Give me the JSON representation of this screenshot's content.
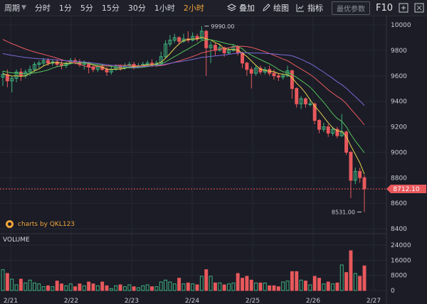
{
  "toolbar": {
    "period_label": "周期",
    "periods": [
      "分时",
      "1分",
      "5分",
      "15分",
      "30分",
      "1小时",
      "2小时"
    ],
    "active_period": "2小时",
    "overlay_label": "叠加",
    "draw_label": "绘图",
    "indicator_label": "指标",
    "params_label": "最优参数",
    "f10_label": "F10"
  },
  "watermark": "charts by QKL123",
  "volume_label": "VOLUME",
  "colors": {
    "up": "#3fb27f",
    "down": "#e8595c",
    "accent": "#f0a53a",
    "ma5": "#e8d44d",
    "ma10": "#54c35a",
    "ma20": "#ea5a5e",
    "ma30": "#7b6ad8"
  },
  "chart_data": {
    "type": "candlestick",
    "x_ticks": [
      "2/21",
      "2/22",
      "2/23",
      "2/24",
      "2/25",
      "2/26",
      "2/27"
    ],
    "price_ticks": [
      "10000",
      "9800",
      "9600",
      "9400",
      "9200",
      "9000",
      "8800",
      "8600",
      "8400"
    ],
    "price_range": [
      8400,
      10000
    ],
    "volume_ticks": [
      "24000",
      "16000",
      "8000",
      "0"
    ],
    "volume_range": [
      0,
      24000
    ],
    "last_price": "8712.10",
    "high_label": "9990.00",
    "low_label": "8531.00",
    "grid": true,
    "candles": [
      [
        9590,
        9610,
        9640,
        9520,
        11000
      ],
      [
        9610,
        9560,
        9650,
        9510,
        9000
      ],
      [
        9560,
        9580,
        9600,
        9470,
        6000
      ],
      [
        9580,
        9630,
        9650,
        9550,
        3000
      ],
      [
        9630,
        9600,
        9660,
        9560,
        6000
      ],
      [
        9600,
        9630,
        9650,
        9580,
        4000
      ],
      [
        9630,
        9650,
        9680,
        9600,
        5500
      ],
      [
        9650,
        9690,
        9710,
        9630,
        4000
      ],
      [
        9690,
        9700,
        9720,
        9660,
        3500
      ],
      [
        9700,
        9720,
        9740,
        9680,
        2000
      ],
      [
        9720,
        9700,
        9740,
        9680,
        2500
      ],
      [
        9700,
        9710,
        9730,
        9680,
        2000
      ],
      [
        9710,
        9690,
        9730,
        9670,
        5000
      ],
      [
        9690,
        9680,
        9720,
        9650,
        3500
      ],
      [
        9680,
        9700,
        9710,
        9660,
        2500
      ],
      [
        9700,
        9720,
        9740,
        9690,
        3500
      ],
      [
        9720,
        9710,
        9740,
        9690,
        2000
      ],
      [
        9710,
        9690,
        9730,
        9670,
        3500
      ],
      [
        9690,
        9700,
        9720,
        9650,
        2500
      ],
      [
        9700,
        9670,
        9710,
        9620,
        4500
      ],
      [
        9670,
        9650,
        9680,
        9630,
        3500
      ],
      [
        9650,
        9670,
        9690,
        9630,
        2500
      ],
      [
        9670,
        9650,
        9690,
        9640,
        4500
      ],
      [
        9650,
        9630,
        9670,
        9600,
        2500
      ],
      [
        9630,
        9650,
        9680,
        9610,
        1000
      ],
      [
        9650,
        9670,
        9690,
        9640,
        2500
      ],
      [
        9670,
        9660,
        9690,
        9640,
        3000
      ],
      [
        9660,
        9680,
        9700,
        9650,
        2000
      ],
      [
        9680,
        9690,
        9710,
        9660,
        3000
      ],
      [
        9690,
        9670,
        9710,
        9650,
        2000
      ],
      [
        9670,
        9680,
        9700,
        9660,
        1500
      ],
      [
        9680,
        9690,
        9710,
        9670,
        2500
      ],
      [
        9690,
        9700,
        9720,
        9680,
        3000
      ],
      [
        9700,
        9690,
        9730,
        9670,
        2000
      ],
      [
        9690,
        9700,
        9720,
        9670,
        2000
      ],
      [
        9700,
        9750,
        9790,
        9690,
        4500
      ],
      [
        9750,
        9850,
        9880,
        9740,
        5500
      ],
      [
        9850,
        9880,
        9920,
        9830,
        4500
      ],
      [
        9880,
        9900,
        9930,
        9860,
        3500
      ],
      [
        9900,
        9870,
        9910,
        9850,
        6500
      ],
      [
        9870,
        9890,
        9930,
        9860,
        3500
      ],
      [
        9890,
        9880,
        9950,
        9860,
        4000
      ],
      [
        9880,
        9910,
        9940,
        9870,
        3500
      ],
      [
        9910,
        9890,
        9930,
        9870,
        3000
      ],
      [
        9890,
        9950,
        9990,
        9880,
        7500
      ],
      [
        9950,
        9820,
        9960,
        9600,
        11000
      ],
      [
        9820,
        9840,
        9870,
        9700,
        7500
      ],
      [
        9840,
        9800,
        9860,
        9760,
        4000
      ],
      [
        9800,
        9820,
        9850,
        9790,
        4000
      ],
      [
        9820,
        9780,
        9830,
        9750,
        3000
      ],
      [
        9780,
        9800,
        9820,
        9770,
        3500
      ],
      [
        9800,
        9830,
        9850,
        9790,
        4000
      ],
      [
        9830,
        9780,
        9840,
        9760,
        9000
      ],
      [
        9780,
        9700,
        9790,
        9660,
        6500
      ],
      [
        9700,
        9650,
        9710,
        9600,
        7500
      ],
      [
        9650,
        9620,
        9670,
        9500,
        5500
      ],
      [
        9620,
        9660,
        9680,
        9600,
        4000
      ],
      [
        9660,
        9630,
        9680,
        9610,
        4000
      ],
      [
        9630,
        9650,
        9670,
        9610,
        4000
      ],
      [
        9650,
        9620,
        9680,
        9600,
        2500
      ],
      [
        9620,
        9600,
        9650,
        9570,
        2500
      ],
      [
        9600,
        9590,
        9620,
        9560,
        2000
      ],
      [
        9590,
        9600,
        9620,
        9570,
        4500
      ],
      [
        9600,
        9640,
        9680,
        9590,
        5000
      ],
      [
        9640,
        9500,
        9650,
        9420,
        10000
      ],
      [
        9500,
        9380,
        9510,
        9350,
        10000
      ],
      [
        9380,
        9420,
        9440,
        9340,
        5500
      ],
      [
        9420,
        9380,
        9430,
        9350,
        5000
      ],
      [
        9380,
        9380,
        9420,
        9360,
        3000
      ],
      [
        9380,
        9250,
        9390,
        9220,
        7500
      ],
      [
        9250,
        9180,
        9260,
        9150,
        6500
      ],
      [
        9180,
        9200,
        9230,
        9160,
        3500
      ],
      [
        9200,
        9150,
        9220,
        9120,
        4500
      ],
      [
        9150,
        9180,
        9200,
        9130,
        3500
      ],
      [
        9180,
        9130,
        9200,
        9110,
        4000
      ],
      [
        9130,
        9160,
        9300,
        9120,
        13500
      ],
      [
        9160,
        9000,
        9170,
        8980,
        9500
      ],
      [
        9000,
        8780,
        9010,
        8640,
        21000
      ],
      [
        8780,
        8850,
        8880,
        8750,
        9000
      ],
      [
        8850,
        8800,
        8880,
        8760,
        7500
      ],
      [
        8800,
        8712.1,
        8820,
        8531,
        13000
      ]
    ]
  }
}
